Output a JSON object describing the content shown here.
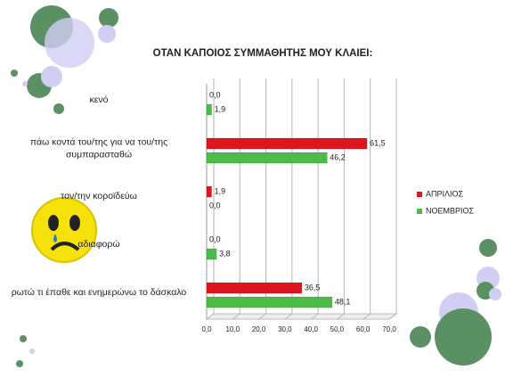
{
  "chart_data": {
    "type": "bar",
    "orientation": "horizontal",
    "title": "ΟΤΑΝ ΚΑΠΟΙΟΣ ΣΥΜΜΑΘΗΤΗΣ ΜΟΥ ΚΛΑΙΕΙ:",
    "categories": [
      "κενό",
      "πάω κοντά του/της για να του/της συμπαρασταθώ",
      "τον/την κοροϊδεύω",
      "αδιαφορώ",
      "ρωτώ τι έπαθε και ενημερώνω το δάσκαλο"
    ],
    "series": [
      {
        "name": "ΑΠΡΙΛΙΟΣ",
        "color": "#e0141c",
        "values": [
          0.0,
          61.5,
          1.9,
          0.0,
          36.5
        ],
        "value_labels": [
          "0,0",
          "61,5",
          "1,9",
          "0,0",
          "36,5"
        ]
      },
      {
        "name": "ΝΟΕΜΒΡΙΟΣ",
        "color": "#4cbb4a",
        "values": [
          1.9,
          46.2,
          0.0,
          3.8,
          48.1
        ],
        "value_labels": [
          "1,9",
          "46,2",
          "0,0",
          "3,8",
          "48,1"
        ]
      }
    ],
    "xlim": [
      0,
      70
    ],
    "xticks": [
      {
        "value": 0,
        "label": "0,0"
      },
      {
        "value": 10,
        "label": "10,0"
      },
      {
        "value": 20,
        "label": "20,0"
      },
      {
        "value": 30,
        "label": "30,0"
      },
      {
        "value": 40,
        "label": "40,0"
      },
      {
        "value": 50,
        "label": "50,0"
      },
      {
        "value": 60,
        "label": "60,0"
      },
      {
        "value": 70,
        "label": "70,0"
      }
    ],
    "grid": true,
    "legend": "right"
  }
}
